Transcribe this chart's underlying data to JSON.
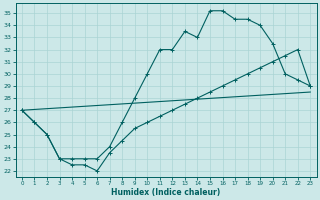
{
  "xlabel": "Humidex (Indice chaleur)",
  "bg_color": "#cce8e8",
  "grid_color": "#aad4d4",
  "line_color": "#006060",
  "xlim": [
    -0.5,
    23.5
  ],
  "ylim": [
    21.5,
    35.8
  ],
  "yticks": [
    22,
    23,
    24,
    25,
    26,
    27,
    28,
    29,
    30,
    31,
    32,
    33,
    34,
    35
  ],
  "xticks": [
    0,
    1,
    2,
    3,
    4,
    5,
    6,
    7,
    8,
    9,
    10,
    11,
    12,
    13,
    14,
    15,
    16,
    17,
    18,
    19,
    20,
    21,
    22,
    23
  ],
  "line1_x": [
    0,
    1,
    2,
    3,
    4,
    5,
    6,
    7,
    8,
    9,
    10,
    11,
    12,
    13,
    14,
    15,
    16,
    17,
    18,
    19,
    20,
    21,
    22,
    23
  ],
  "line1_y": [
    27,
    26,
    25,
    23,
    23,
    23,
    23,
    24,
    26,
    28,
    30,
    32,
    32,
    33.5,
    33,
    35.2,
    35.2,
    34.5,
    34.5,
    34.0,
    32.5,
    30,
    29.5,
    29
  ],
  "line2_x": [
    0,
    1,
    2,
    3,
    4,
    5,
    6,
    7,
    8,
    9,
    10,
    11,
    12,
    13,
    14,
    15,
    16,
    17,
    18,
    19,
    20,
    21,
    22,
    23
  ],
  "line2_y": [
    27.0,
    26.0,
    25.0,
    23.0,
    22.5,
    22.5,
    22.0,
    23.5,
    24.5,
    25.5,
    26.0,
    26.5,
    27.0,
    27.5,
    28.0,
    28.5,
    29.0,
    29.5,
    30.0,
    30.5,
    31.0,
    31.5,
    32.0,
    29.0
  ],
  "line3_x": [
    0,
    23
  ],
  "line3_y": [
    27.0,
    28.5
  ]
}
